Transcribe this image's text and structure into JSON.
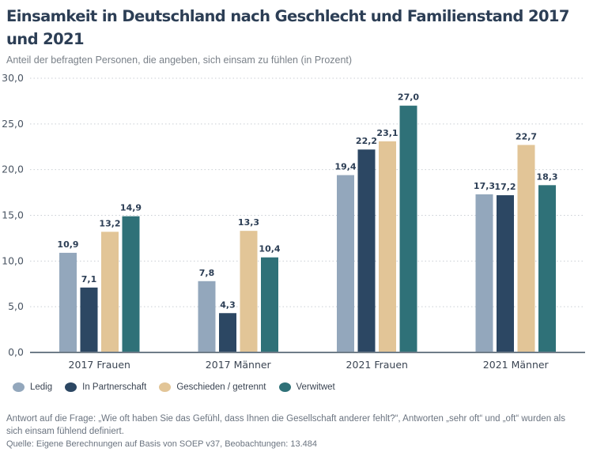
{
  "header": {
    "title": "Einsamkeit in Deutschland nach Geschlecht und Familienstand 2017 und 2021",
    "subtitle": "Anteil der befragten Personen, die angeben, sich einsam zu fühlen (in Prozent)"
  },
  "footer": {
    "note": "Antwort auf die Frage: „Wie oft haben Sie das Gefühl, dass Ihnen die Gesellschaft anderer fehlt?“, Antworten „sehr oft“ und „oft“ wurden als sich einsam fühlend definiert.",
    "source": "Quelle: Eigene Berechnungen auf Basis von SOEP v37, Beobachtungen: 13.484"
  },
  "chart_data": {
    "type": "bar",
    "title": "Einsamkeit in Deutschland nach Geschlecht und Familienstand 2017 und 2021",
    "subtitle": "Anteil der befragten Personen, die angeben, sich einsam zu fühlen (in Prozent)",
    "xlabel": "",
    "ylabel": "",
    "ylim": [
      0,
      30
    ],
    "yticks": [
      0,
      5,
      10,
      15,
      20,
      25,
      30
    ],
    "ytick_labels": [
      "0,0",
      "5,0",
      "10,0",
      "15,0",
      "20,0",
      "25,0",
      "30,0"
    ],
    "grid": true,
    "legend_position": "bottom-left",
    "categories": [
      "2017 Frauen",
      "2017 Männer",
      "2021 Frauen",
      "2021 Männer"
    ],
    "series": [
      {
        "name": "Ledig",
        "color": "#93a7bc",
        "values": [
          10.9,
          7.8,
          19.4,
          17.3
        ],
        "labels": [
          "10,9",
          "7,8",
          "19,4",
          "17,3"
        ]
      },
      {
        "name": "In Partnerschaft",
        "color": "#2c4763",
        "values": [
          7.1,
          4.3,
          22.2,
          17.2
        ],
        "labels": [
          "7,1",
          "4,3",
          "22,2",
          "17,2"
        ]
      },
      {
        "name": "Geschieden / getrennt",
        "color": "#e2c597",
        "values": [
          13.2,
          13.3,
          23.1,
          22.7
        ],
        "labels": [
          "13,2",
          "13,3",
          "23,1",
          "22,7"
        ]
      },
      {
        "name": "Verwitwet",
        "color": "#2f7178",
        "values": [
          14.9,
          10.4,
          27.0,
          18.3
        ],
        "labels": [
          "14,9",
          "10,4",
          "27,0",
          "18,3"
        ]
      }
    ]
  }
}
